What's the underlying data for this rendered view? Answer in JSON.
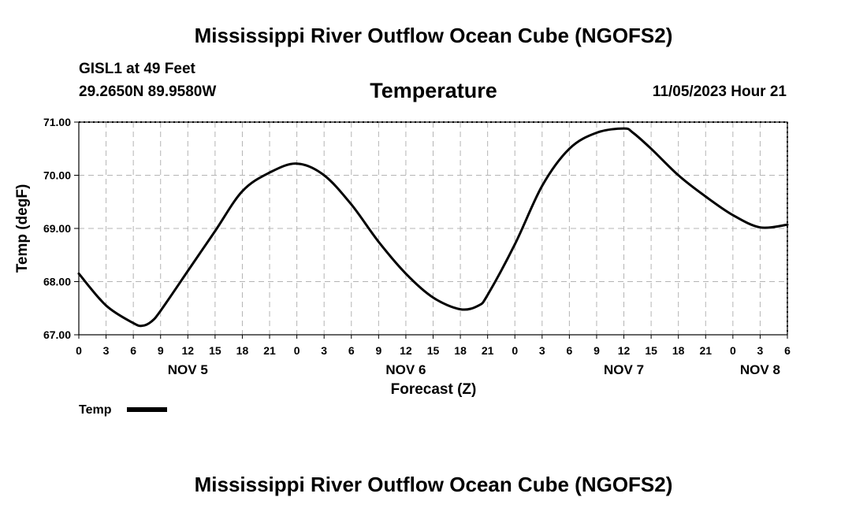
{
  "header": {
    "title": "Mississippi River Outflow Ocean Cube (NGOFS2)",
    "station": "GISL1 at 49 Feet",
    "coords": "29.2650N  89.9580W",
    "variable": "Temperature",
    "datetime": "11/05/2023 Hour 21"
  },
  "footer": {
    "title": "Mississippi River Outflow Ocean Cube (NGOFS2)"
  },
  "chart_data": {
    "type": "line",
    "title": "Temperature",
    "xlabel": "Forecast (Z)",
    "ylabel": "Temp (degF)",
    "ylim": [
      67.0,
      71.0
    ],
    "xlim_hours": [
      0,
      78
    ],
    "grid": true,
    "yticks": [
      "67.00",
      "68.00",
      "69.00",
      "70.00",
      "71.00"
    ],
    "xticks": [
      "0",
      "3",
      "6",
      "9",
      "12",
      "15",
      "18",
      "21",
      "0",
      "3",
      "6",
      "9",
      "12",
      "15",
      "18",
      "21",
      "0",
      "3",
      "6",
      "9",
      "12",
      "15",
      "18",
      "21",
      "0",
      "3",
      "6"
    ],
    "day_labels": [
      {
        "label": "NOV 5",
        "hour": 12
      },
      {
        "label": "NOV 6",
        "hour": 36
      },
      {
        "label": "NOV 7",
        "hour": 60
      },
      {
        "label": "NOV 8",
        "hour": 75
      }
    ],
    "series": [
      {
        "name": "Temp",
        "x": [
          0,
          3,
          6,
          7,
          8,
          9,
          12,
          15,
          18,
          21,
          24,
          27,
          30,
          33,
          36,
          39,
          42,
          44,
          45,
          48,
          51,
          54,
          57,
          60,
          61,
          63,
          66,
          69,
          72,
          75,
          78
        ],
        "values": [
          68.15,
          67.55,
          67.22,
          67.17,
          67.25,
          67.45,
          68.2,
          68.95,
          69.7,
          70.05,
          70.22,
          70.0,
          69.45,
          68.75,
          68.15,
          67.7,
          67.48,
          67.55,
          67.75,
          68.7,
          69.8,
          70.5,
          70.8,
          70.88,
          70.8,
          70.5,
          70.0,
          69.6,
          69.25,
          69.02,
          69.07
        ]
      }
    ],
    "legend": {
      "label": "Temp",
      "position": "bottom-left"
    }
  }
}
